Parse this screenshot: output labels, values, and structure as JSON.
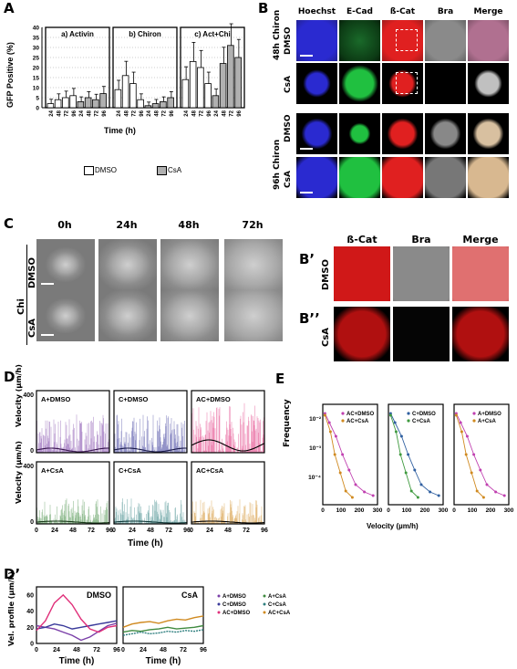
{
  "panels": {
    "A": "A",
    "B": "B",
    "C": "C",
    "B1": "B’",
    "B2": "B’’",
    "D": "D",
    "D1": "D’",
    "E": "E"
  },
  "panelA": {
    "ylabel": "GFP Positive (%)",
    "xlabel": "Time (h)",
    "legend": [
      "DMSO",
      "CsA"
    ],
    "groups": [
      "a) Activin",
      "b) Chiron",
      "c) Act+Chi"
    ],
    "ticks_y": [
      "0",
      "5",
      "10",
      "15",
      "20",
      "25",
      "30",
      "35",
      "40"
    ],
    "time_ticks": [
      "24",
      "48",
      "72",
      "96"
    ]
  },
  "panelB": {
    "columns": [
      "Hoechst",
      "E-Cad",
      "ß-Cat",
      "Bra",
      "Merge"
    ],
    "rows": [
      "DMSO",
      "CsA",
      "DMSO",
      "CsA"
    ],
    "groups": [
      "48h Chiron",
      "96h Chiron"
    ]
  },
  "panelC": {
    "columns": [
      "0h",
      "24h",
      "48h",
      "72h"
    ],
    "rows": [
      "DMSO",
      "CsA"
    ],
    "side": "Chi"
  },
  "panelB1": {
    "columns": [
      "ß-Cat",
      "Bra",
      "Merge"
    ],
    "rows": [
      "DMSO",
      "CsA"
    ]
  },
  "panelD": {
    "ylabel": "Velocity (µm/h)",
    "xlabel": "Time (h)",
    "titles": [
      "A+DMSO",
      "C+DMSO",
      "AC+DMSO",
      "A+CsA",
      "C+CsA",
      "AC+CsA"
    ],
    "ytick": "400",
    "ytick0": "0",
    "xticks": [
      "0",
      "24",
      "48",
      "72",
      "96"
    ]
  },
  "panelD1": {
    "ylabel": "Vel. profile (µm/h)",
    "xlabel": "Time (h)",
    "titles": [
      "DMSO",
      "CsA"
    ],
    "yticks": [
      "0",
      "20",
      "40",
      "60"
    ],
    "xticks": [
      "0",
      "24",
      "48",
      "72",
      "96"
    ],
    "legend": [
      "A+DMSO",
      "C+DMSO",
      "AC+DMSO",
      "A+CsA",
      "C+CsA",
      "AC+CsA"
    ],
    "legend_colors": [
      "#7a3fa8",
      "#3a3a9a",
      "#e0307a",
      "#3f8a3f",
      "#2f7f7f",
      "#d08a20"
    ]
  },
  "panelE": {
    "ylabel": "Frequency",
    "xlabel": "Velocity (µm/h)",
    "yticks": [
      "10⁻²",
      "10⁻³",
      "10⁻⁴"
    ],
    "xticks": [
      "0",
      "100",
      "200",
      "300"
    ],
    "legends": [
      [
        "AC+DMSO",
        "AC+CsA"
      ],
      [
        "C+DMSO",
        "C+CsA"
      ],
      [
        "A+DMSO",
        "A+CsA"
      ]
    ]
  },
  "colors": {
    "dmso_bar": "#ffffff",
    "csa_bar": "#b0b0b0",
    "hoechst": "#2a2ad0",
    "ecad": "#20c040",
    "bcat": "#e02020",
    "bra": "#cfcfcf"
  },
  "chart_data": [
    {
      "type": "bar",
      "categories": [
        "24",
        "48",
        "72",
        "96"
      ],
      "series": [
        {
          "name": "DMSO",
          "group": "a) Activin",
          "values": [
            2,
            4,
            5,
            6
          ]
        },
        {
          "name": "CsA",
          "group": "a) Activin",
          "values": [
            3,
            5,
            4,
            7
          ]
        },
        {
          "name": "DMSO",
          "group": "b) Chiron",
          "values": [
            9,
            16,
            12,
            4
          ]
        },
        {
          "name": "CsA",
          "group": "b) Chiron",
          "values": [
            1,
            2,
            3,
            5
          ]
        },
        {
          "name": "DMSO",
          "group": "c) Act+Chi",
          "values": [
            14,
            23,
            20,
            12
          ]
        },
        {
          "name": "CsA",
          "group": "c) Act+Chi",
          "values": [
            6,
            22,
            31,
            25
          ]
        }
      ],
      "xlabel": "Time (h)",
      "ylabel": "GFP Positive (%)",
      "ylim": [
        0,
        40
      ]
    }
  ]
}
